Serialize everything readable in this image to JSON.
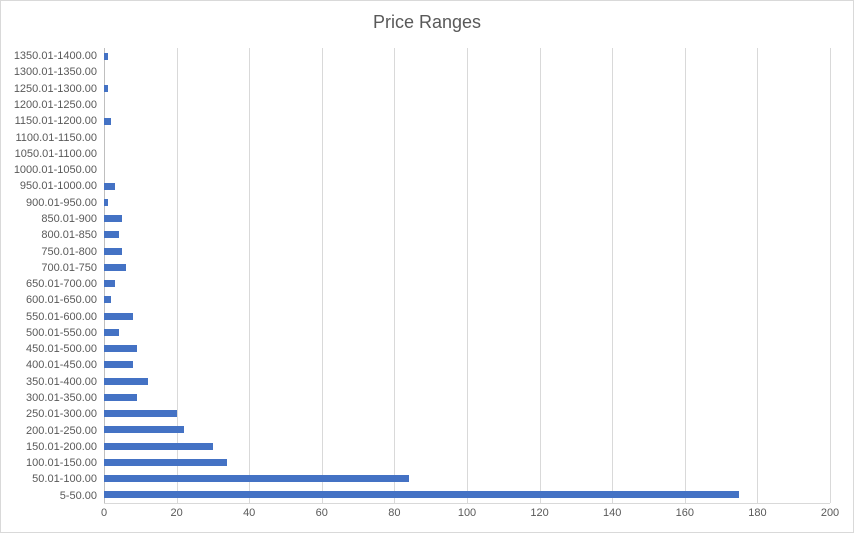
{
  "chart_data": {
    "type": "bar",
    "orientation": "horizontal",
    "title": "Price Ranges",
    "categories": [
      "1350.01-1400.00",
      "1300.01-1350.00",
      "1250.01-1300.00",
      "1200.01-1250.00",
      "1150.01-1200.00",
      "1100.01-1150.00",
      "1050.01-1100.00",
      "1000.01-1050.00",
      "950.01-1000.00",
      "900.01-950.00",
      "850.01-900",
      "800.01-850",
      "750.01-800",
      "700.01-750",
      "650.01-700.00",
      "600.01-650.00",
      "550.01-600.00",
      "500.01-550.00",
      "450.01-500.00",
      "400.01-450.00",
      "350.01-400.00",
      "300.01-350.00",
      "250.01-300.00",
      "200.01-250.00",
      "150.01-200.00",
      "100.01-150.00",
      "50.01-100.00",
      "5-50.00"
    ],
    "values": [
      1,
      0,
      1,
      0,
      2,
      0,
      0,
      0,
      3,
      1,
      5,
      4,
      5,
      6,
      3,
      2,
      8,
      4,
      9,
      8,
      12,
      9,
      20,
      22,
      30,
      34,
      84,
      175
    ],
    "xlabel": "",
    "ylabel": "",
    "xlim": [
      0,
      200
    ],
    "x_ticks": [
      0,
      20,
      40,
      60,
      80,
      100,
      120,
      140,
      160,
      180,
      200
    ],
    "grid": "vertical",
    "legend": "none",
    "colors": {
      "bar": "#4472c4",
      "gridline": "#d9d9d9",
      "axis_line": "#bfbfbf",
      "label_text": "#595959",
      "title_text": "#595959",
      "chart_border": "#d9d9d9",
      "background": "#ffffff"
    }
  }
}
